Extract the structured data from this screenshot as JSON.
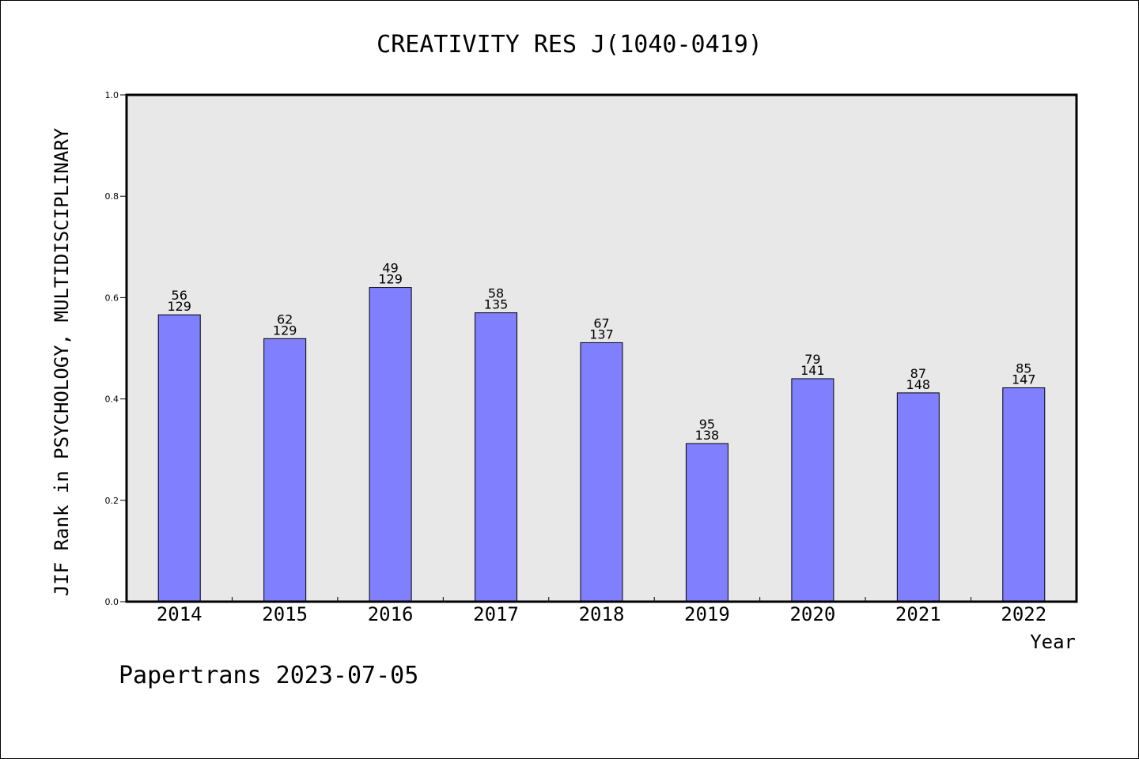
{
  "chart_data": {
    "type": "bar",
    "title": "CREATIVITY RES J(1040-0419)",
    "xlabel": "Year",
    "ylabel": "JIF Rank in PSYCHOLOGY, MULTIDISCIPLINARY",
    "ylim": [
      0,
      1.0
    ],
    "yticks": [
      "0.0",
      "0.2",
      "0.4",
      "0.6",
      "0.8",
      "1.0"
    ],
    "categories": [
      "2014",
      "2015",
      "2016",
      "2017",
      "2018",
      "2019",
      "2020",
      "2021",
      "2022"
    ],
    "values": [
      0.566,
      0.519,
      0.62,
      0.57,
      0.511,
      0.312,
      0.44,
      0.412,
      0.422
    ],
    "rank_labels": [
      "56",
      "62",
      "49",
      "58",
      "67",
      "95",
      "79",
      "87",
      "85"
    ],
    "total_labels": [
      "129",
      "129",
      "129",
      "135",
      "137",
      "138",
      "141",
      "148",
      "147"
    ],
    "bar_color": "#8080ff",
    "plot_background": "#e8e8e8",
    "grid": false
  },
  "footer": {
    "text": "Papertrans 2023-07-05"
  }
}
